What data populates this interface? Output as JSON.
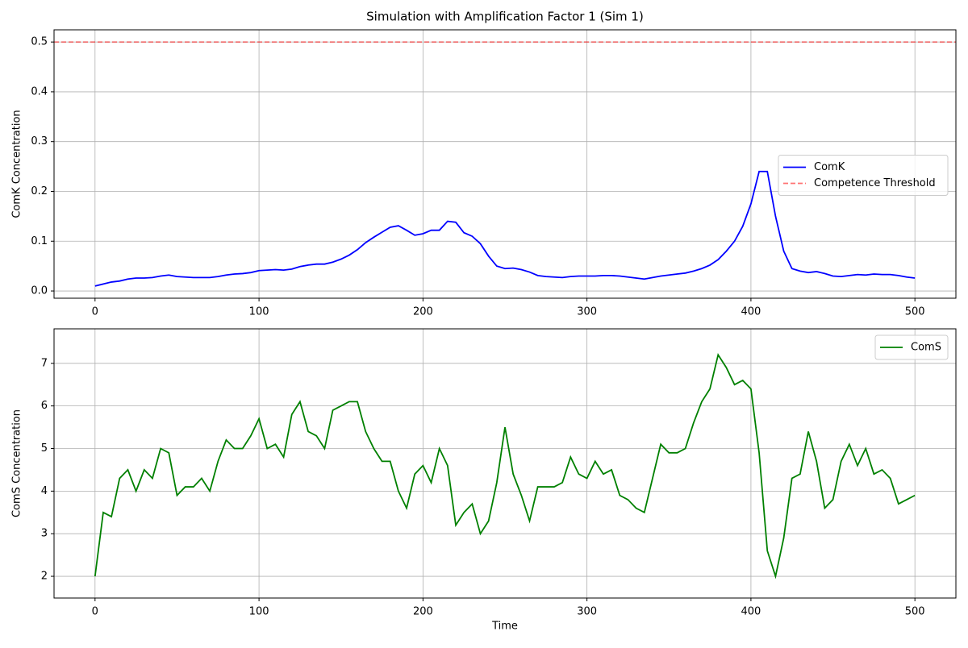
{
  "chart_data": [
    {
      "type": "line",
      "title": "Simulation with Amplification Factor 1 (Sim 1)",
      "ylabel": "ComK Concentration",
      "x": [
        0,
        5,
        10,
        15,
        20,
        25,
        30,
        35,
        40,
        45,
        50,
        55,
        60,
        65,
        70,
        75,
        80,
        85,
        90,
        95,
        100,
        105,
        110,
        115,
        120,
        125,
        130,
        135,
        140,
        145,
        150,
        155,
        160,
        165,
        170,
        175,
        180,
        185,
        190,
        195,
        200,
        205,
        210,
        215,
        220,
        225,
        230,
        235,
        240,
        245,
        250,
        255,
        260,
        265,
        270,
        275,
        280,
        285,
        290,
        295,
        300,
        305,
        310,
        315,
        320,
        325,
        330,
        335,
        340,
        345,
        350,
        355,
        360,
        365,
        370,
        375,
        380,
        385,
        390,
        395,
        400,
        405,
        410,
        415,
        420,
        425,
        430,
        435,
        440,
        445,
        450,
        455,
        460,
        465,
        470,
        475,
        480,
        485,
        490,
        495,
        500
      ],
      "series": [
        {
          "name": "ComK",
          "color": "#0000ff",
          "values": [
            0.01,
            0.014,
            0.018,
            0.02,
            0.024,
            0.026,
            0.026,
            0.027,
            0.03,
            0.032,
            0.029,
            0.028,
            0.027,
            0.027,
            0.027,
            0.029,
            0.032,
            0.034,
            0.035,
            0.037,
            0.041,
            0.042,
            0.043,
            0.042,
            0.044,
            0.049,
            0.052,
            0.054,
            0.054,
            0.058,
            0.064,
            0.072,
            0.083,
            0.097,
            0.108,
            0.118,
            0.128,
            0.131,
            0.122,
            0.112,
            0.115,
            0.122,
            0.122,
            0.14,
            0.138,
            0.117,
            0.11,
            0.095,
            0.07,
            0.05,
            0.045,
            0.046,
            0.043,
            0.038,
            0.031,
            0.029,
            0.028,
            0.027,
            0.029,
            0.03,
            0.03,
            0.03,
            0.031,
            0.031,
            0.03,
            0.028,
            0.026,
            0.024,
            0.027,
            0.03,
            0.032,
            0.034,
            0.036,
            0.04,
            0.045,
            0.052,
            0.063,
            0.08,
            0.1,
            0.13,
            0.175,
            0.24,
            0.24,
            0.15,
            0.08,
            0.045,
            0.04,
            0.037,
            0.039,
            0.035,
            0.03,
            0.029,
            0.031,
            0.033,
            0.032,
            0.034,
            0.033,
            0.033,
            0.031,
            0.028,
            0.026
          ]
        }
      ],
      "hline": {
        "name": "Competence Threshold",
        "value": 0.5,
        "color": "#ff0000"
      },
      "xlim": [
        -25,
        525
      ],
      "ylim": [
        -0.0145,
        0.5245
      ],
      "xticks": [
        0,
        100,
        200,
        300,
        400,
        500
      ],
      "yticks": [
        {
          "value": 0,
          "label": "0.0"
        },
        0.1,
        0.2,
        0.3,
        0.4,
        0.5
      ],
      "grid": true,
      "legend": "right"
    },
    {
      "type": "line",
      "xlabel": "Time",
      "ylabel": "ComS Concentration",
      "x": [
        0,
        5,
        10,
        15,
        20,
        25,
        30,
        35,
        40,
        45,
        50,
        55,
        60,
        65,
        70,
        75,
        80,
        85,
        90,
        95,
        100,
        105,
        110,
        115,
        120,
        125,
        130,
        135,
        140,
        145,
        150,
        155,
        160,
        165,
        170,
        175,
        180,
        185,
        190,
        195,
        200,
        205,
        210,
        215,
        220,
        225,
        230,
        235,
        240,
        245,
        250,
        255,
        260,
        265,
        270,
        275,
        280,
        285,
        290,
        295,
        300,
        305,
        310,
        315,
        320,
        325,
        330,
        335,
        340,
        345,
        350,
        355,
        360,
        365,
        370,
        375,
        380,
        385,
        390,
        395,
        400,
        405,
        410,
        415,
        420,
        425,
        430,
        435,
        440,
        445,
        450,
        455,
        460,
        465,
        470,
        475,
        480,
        485,
        490,
        495,
        500
      ],
      "series": [
        {
          "name": "ComS",
          "color": "#008000",
          "values": [
            2.0,
            3.5,
            3.4,
            4.3,
            4.5,
            4.0,
            4.5,
            4.3,
            5.0,
            4.9,
            3.9,
            4.1,
            4.1,
            4.3,
            4.0,
            4.7,
            5.2,
            5.0,
            5.0,
            5.3,
            5.7,
            5.0,
            5.1,
            4.8,
            5.8,
            6.1,
            5.4,
            5.3,
            5.0,
            5.9,
            6.0,
            6.1,
            6.1,
            5.4,
            5.0,
            4.7,
            4.7,
            4.0,
            3.6,
            4.4,
            4.6,
            4.2,
            5.0,
            4.6,
            3.2,
            3.5,
            3.7,
            3.0,
            3.3,
            4.2,
            5.5,
            4.4,
            3.9,
            3.3,
            4.1,
            4.1,
            4.1,
            4.2,
            4.8,
            4.4,
            4.3,
            4.7,
            4.4,
            4.5,
            3.9,
            3.8,
            3.6,
            3.5,
            4.3,
            5.1,
            4.9,
            4.9,
            5.0,
            5.6,
            6.1,
            6.4,
            7.2,
            6.9,
            6.5,
            6.6,
            6.4,
            4.9,
            2.6,
            2.0,
            2.9,
            4.3,
            4.4,
            5.4,
            4.7,
            3.6,
            3.8,
            4.7,
            5.1,
            4.6,
            5.0,
            4.4,
            4.5,
            4.3,
            3.7,
            3.8,
            3.9
          ]
        }
      ],
      "xlim": [
        -25,
        525
      ],
      "ylim": [
        1.49,
        7.81
      ],
      "xticks": [
        0,
        100,
        200,
        300,
        400,
        500
      ],
      "yticks": [
        2,
        3,
        4,
        5,
        6,
        7
      ],
      "grid": true,
      "legend": "upper right"
    }
  ]
}
